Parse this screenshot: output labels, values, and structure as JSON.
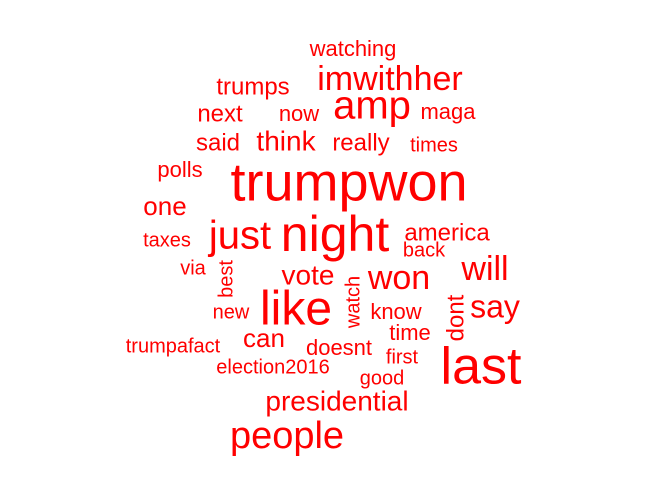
{
  "word_cloud": {
    "color": "#ff0000",
    "words": [
      {
        "text": "trumpwon",
        "weight": 10
      },
      {
        "text": "night",
        "weight": 9
      },
      {
        "text": "last",
        "weight": 9
      },
      {
        "text": "like",
        "weight": 8
      },
      {
        "text": "people",
        "weight": 7
      },
      {
        "text": "just",
        "weight": 7
      },
      {
        "text": "amp",
        "weight": 7
      },
      {
        "text": "imwithher",
        "weight": 6
      },
      {
        "text": "won",
        "weight": 6
      },
      {
        "text": "will",
        "weight": 5
      },
      {
        "text": "say",
        "weight": 5
      },
      {
        "text": "presidential",
        "weight": 5
      },
      {
        "text": "vote",
        "weight": 5
      },
      {
        "text": "think",
        "weight": 4
      },
      {
        "text": "trumps",
        "weight": 4
      },
      {
        "text": "can",
        "weight": 4
      },
      {
        "text": "one",
        "weight": 4
      },
      {
        "text": "next",
        "weight": 4
      },
      {
        "text": "said",
        "weight": 4
      },
      {
        "text": "really",
        "weight": 4
      },
      {
        "text": "dont",
        "weight": 4
      },
      {
        "text": "america",
        "weight": 4
      },
      {
        "text": "doesnt",
        "weight": 4
      },
      {
        "text": "know",
        "weight": 4
      },
      {
        "text": "time",
        "weight": 4
      },
      {
        "text": "watching",
        "weight": 3
      },
      {
        "text": "now",
        "weight": 3
      },
      {
        "text": "maga",
        "weight": 3
      },
      {
        "text": "times",
        "weight": 3
      },
      {
        "text": "polls",
        "weight": 3
      },
      {
        "text": "back",
        "weight": 3
      },
      {
        "text": "taxes",
        "weight": 3
      },
      {
        "text": "via",
        "weight": 3
      },
      {
        "text": "best",
        "weight": 3
      },
      {
        "text": "watch",
        "weight": 3
      },
      {
        "text": "new",
        "weight": 3
      },
      {
        "text": "trumpafact",
        "weight": 3
      },
      {
        "text": "first",
        "weight": 3
      },
      {
        "text": "election2016",
        "weight": 3
      },
      {
        "text": "good",
        "weight": 3
      }
    ]
  }
}
